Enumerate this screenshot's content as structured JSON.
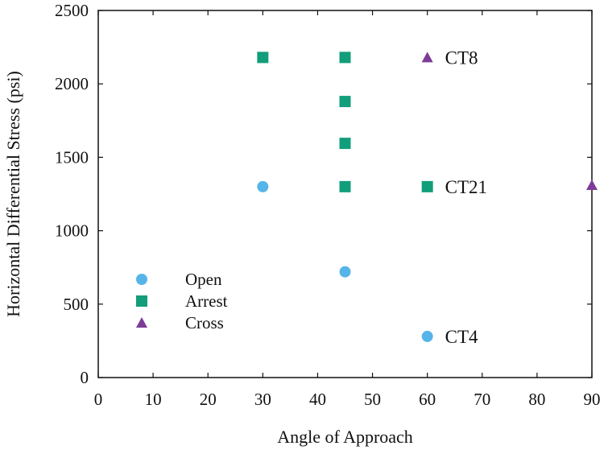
{
  "chart_data": {
    "type": "scatter",
    "title": "",
    "xlabel": "Angle of Approach",
    "ylabel": "Horizontal Differential Stress (psi)",
    "xlim": [
      0,
      90
    ],
    "ylim": [
      0,
      2500
    ],
    "xticks": [
      0,
      10,
      20,
      30,
      40,
      50,
      60,
      70,
      80,
      90
    ],
    "yticks": [
      0,
      500,
      1000,
      1500,
      2000,
      2500
    ],
    "grid": false,
    "legend_position": "bottom-left",
    "series": [
      {
        "name": "Open",
        "marker": "circle",
        "color": "#56b4e9",
        "points": [
          {
            "x": 30,
            "y": 1300
          },
          {
            "x": 45,
            "y": 720
          },
          {
            "x": 60,
            "y": 280
          }
        ]
      },
      {
        "name": "Arrest",
        "marker": "square",
        "color": "#129e7a",
        "points": [
          {
            "x": 30,
            "y": 2180
          },
          {
            "x": 45,
            "y": 2180
          },
          {
            "x": 45,
            "y": 1880
          },
          {
            "x": 45,
            "y": 1595
          },
          {
            "x": 45,
            "y": 1300
          },
          {
            "x": 60,
            "y": 1300
          }
        ]
      },
      {
        "name": "Cross",
        "marker": "triangle",
        "color": "#7d3c98",
        "points": [
          {
            "x": 60,
            "y": 2180
          },
          {
            "x": 90,
            "y": 1310
          }
        ]
      }
    ],
    "annotations": [
      {
        "text": "CT8",
        "x": 60,
        "y": 2180
      },
      {
        "text": "CT21",
        "x": 60,
        "y": 1300
      },
      {
        "text": "CT4",
        "x": 60,
        "y": 280
      }
    ]
  }
}
